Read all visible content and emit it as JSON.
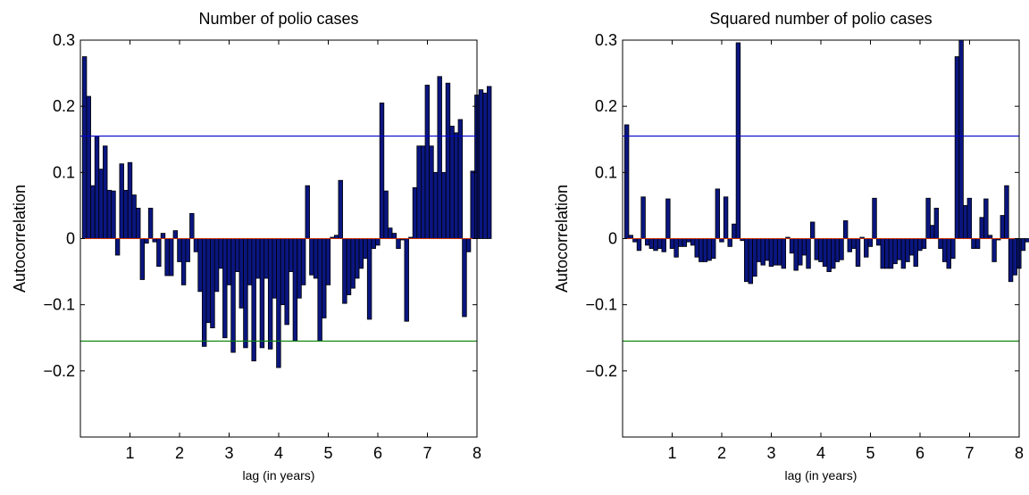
{
  "chart_data": [
    {
      "type": "bar",
      "title": "Number of polio cases",
      "xlabel": "lag (in years)",
      "ylabel": "Autocorrelation",
      "xlim": [
        0,
        8
      ],
      "ylim": [
        -0.3,
        0.3
      ],
      "xticks": [
        "1",
        "2",
        "3",
        "4",
        "5",
        "6",
        "7",
        "8"
      ],
      "yticks": [
        "0.3",
        "0.2",
        "0.1",
        "0",
        "−0.1",
        "−0.2"
      ],
      "bounds": {
        "upper": 0.155,
        "lower": -0.155,
        "upper_color": "#0000cc",
        "lower_color": "#008000"
      },
      "bar_color": "#0a1680",
      "lag_step_years": 0.0833,
      "values": [
        0.275,
        0.215,
        0.08,
        0.155,
        0.105,
        0.14,
        0.073,
        0.072,
        -0.025,
        0.113,
        0.073,
        0.115,
        0.066,
        0.046,
        -0.062,
        -0.007,
        0.046,
        -0.005,
        -0.042,
        0.008,
        -0.056,
        -0.056,
        0.012,
        -0.035,
        -0.07,
        -0.035,
        0.038,
        -0.02,
        -0.08,
        -0.163,
        -0.127,
        -0.135,
        -0.08,
        -0.045,
        -0.15,
        -0.07,
        -0.172,
        -0.05,
        -0.105,
        -0.165,
        -0.07,
        -0.185,
        -0.06,
        -0.165,
        -0.06,
        -0.167,
        -0.09,
        -0.195,
        -0.1,
        -0.13,
        -0.05,
        -0.155,
        -0.09,
        -0.07,
        0.08,
        -0.055,
        -0.06,
        -0.155,
        -0.12,
        -0.07,
        0.002,
        0.005,
        0.088,
        -0.098,
        -0.085,
        -0.075,
        -0.06,
        -0.045,
        -0.03,
        -0.122,
        -0.015,
        -0.01,
        0.205,
        0.072,
        0.016,
        0.008,
        -0.015,
        -0.002,
        -0.125,
        0.002,
        0.077,
        0.14,
        0.14,
        0.232,
        0.14,
        0.1,
        0.245,
        0.1,
        0.235,
        0.17,
        0.16,
        0.18,
        -0.118,
        -0.02,
        0.102,
        0.217,
        0.225,
        0.22,
        0.23
      ]
    },
    {
      "type": "bar",
      "title": "Squared number of polio cases",
      "xlabel": "lag (in years)",
      "ylabel": "Autocorrelation",
      "xlim": [
        0,
        8
      ],
      "ylim": [
        -0.3,
        0.3
      ],
      "xticks": [
        "1",
        "2",
        "3",
        "4",
        "5",
        "6",
        "7",
        "8"
      ],
      "yticks": [
        "0.3",
        "0.2",
        "0.1",
        "0",
        "−0.1",
        "−0.2"
      ],
      "bounds": {
        "upper": 0.155,
        "lower": -0.155,
        "upper_color": "#0000cc",
        "lower_color": "#008000"
      },
      "bar_color": "#0a1680",
      "lag_step_years": 0.0833,
      "values": [
        0.172,
        0.005,
        -0.005,
        -0.018,
        0.063,
        -0.01,
        -0.015,
        -0.018,
        -0.015,
        -0.02,
        0.06,
        -0.015,
        -0.028,
        -0.012,
        -0.012,
        -0.005,
        -0.01,
        -0.028,
        -0.035,
        -0.035,
        -0.033,
        -0.03,
        0.075,
        -0.005,
        0.063,
        -0.012,
        0.022,
        0.296,
        -0.003,
        -0.065,
        -0.068,
        -0.057,
        -0.035,
        -0.04,
        -0.033,
        -0.042,
        -0.04,
        -0.04,
        -0.045,
        0.002,
        -0.022,
        -0.048,
        -0.04,
        -0.025,
        -0.045,
        0.025,
        -0.032,
        -0.035,
        -0.042,
        -0.05,
        -0.045,
        -0.035,
        -0.032,
        0.027,
        -0.02,
        -0.015,
        -0.042,
        0.002,
        -0.028,
        -0.012,
        0.061,
        -0.01,
        -0.045,
        -0.045,
        -0.045,
        -0.038,
        -0.032,
        -0.045,
        -0.035,
        -0.025,
        -0.042,
        -0.018,
        -0.015,
        0.061,
        0.02,
        0.046,
        -0.015,
        -0.035,
        -0.045,
        -0.03,
        0.275,
        0.3,
        0.05,
        0.061,
        -0.015,
        -0.015,
        0.032,
        0.06,
        0.005,
        -0.035,
        -0.002,
        0.035,
        0.08,
        -0.065,
        -0.055,
        -0.045,
        -0.018,
        -0.005,
        -0.022,
        -0.028
      ]
    }
  ]
}
